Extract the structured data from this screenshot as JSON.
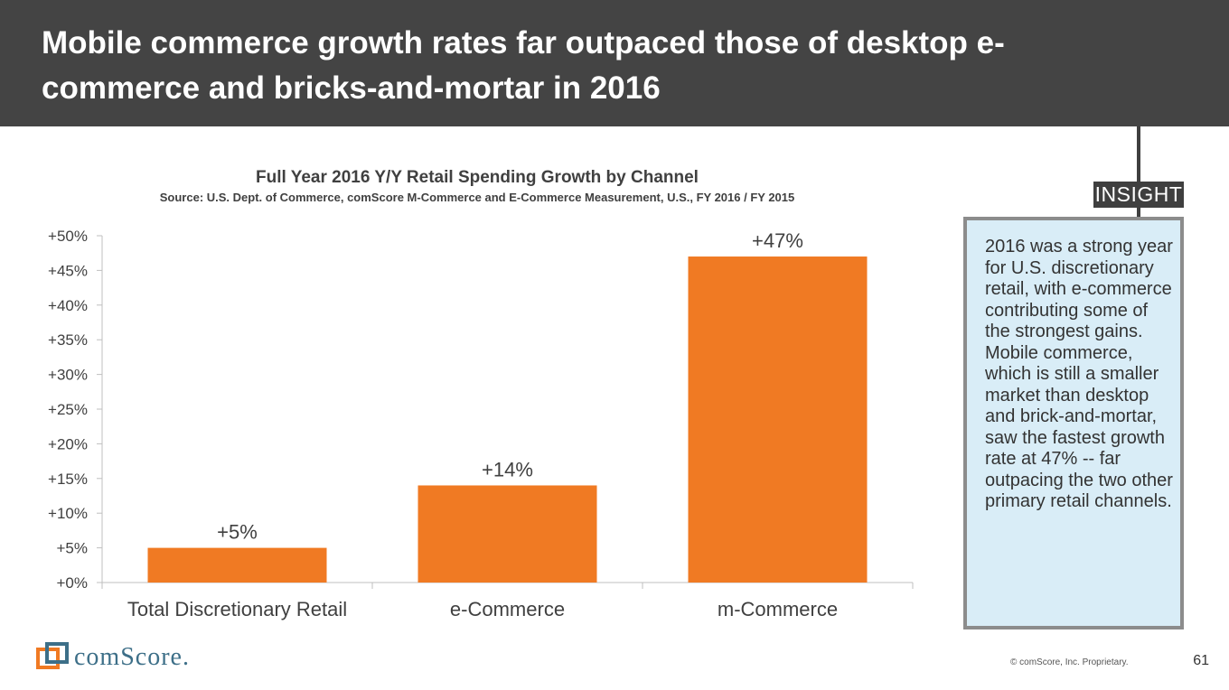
{
  "header": {
    "title": "Mobile commerce growth rates far outpaced those of desktop e-commerce and bricks-and-mortar in 2016"
  },
  "insight": {
    "label": "INSIGHT",
    "text": "2016 was a strong year for U.S. discretionary retail, with e-commerce contributing some of the strongest gains. Mobile commerce, which is still a smaller market than desktop and brick-and-mortar, saw the fastest growth rate at 47% -- far outpacing the two other primary retail channels."
  },
  "footer": {
    "logo_text": "comScore.",
    "copyright": "© comScore, Inc. Proprietary.",
    "page_number": "61"
  },
  "colors": {
    "bar": "#f07a23",
    "header_bg": "#444444",
    "insight_bg": "#d9edf7",
    "logo_blue": "#3d6f88",
    "logo_orange": "#f07a23"
  },
  "chart_data": {
    "type": "bar",
    "title": "Full Year 2016 Y/Y Retail Spending Growth by Channel",
    "subtitle": "Source: U.S. Dept. of Commerce, comScore M-Commerce and E-Commerce Measurement, U.S., FY 2016 / FY 2015",
    "categories": [
      "Total Discretionary Retail",
      "e-Commerce",
      "m-Commerce"
    ],
    "values": [
      5,
      14,
      47
    ],
    "data_labels": [
      "+5%",
      "+14%",
      "+47%"
    ],
    "ylim": [
      0,
      50
    ],
    "yticks": [
      0,
      5,
      10,
      15,
      20,
      25,
      30,
      35,
      40,
      45,
      50
    ],
    "ytick_labels": [
      "+0%",
      "+5%",
      "+10%",
      "+15%",
      "+20%",
      "+25%",
      "+30%",
      "+35%",
      "+40%",
      "+45%",
      "+50%"
    ],
    "xlabel": "",
    "ylabel": "",
    "grid": false,
    "legend": "none"
  }
}
